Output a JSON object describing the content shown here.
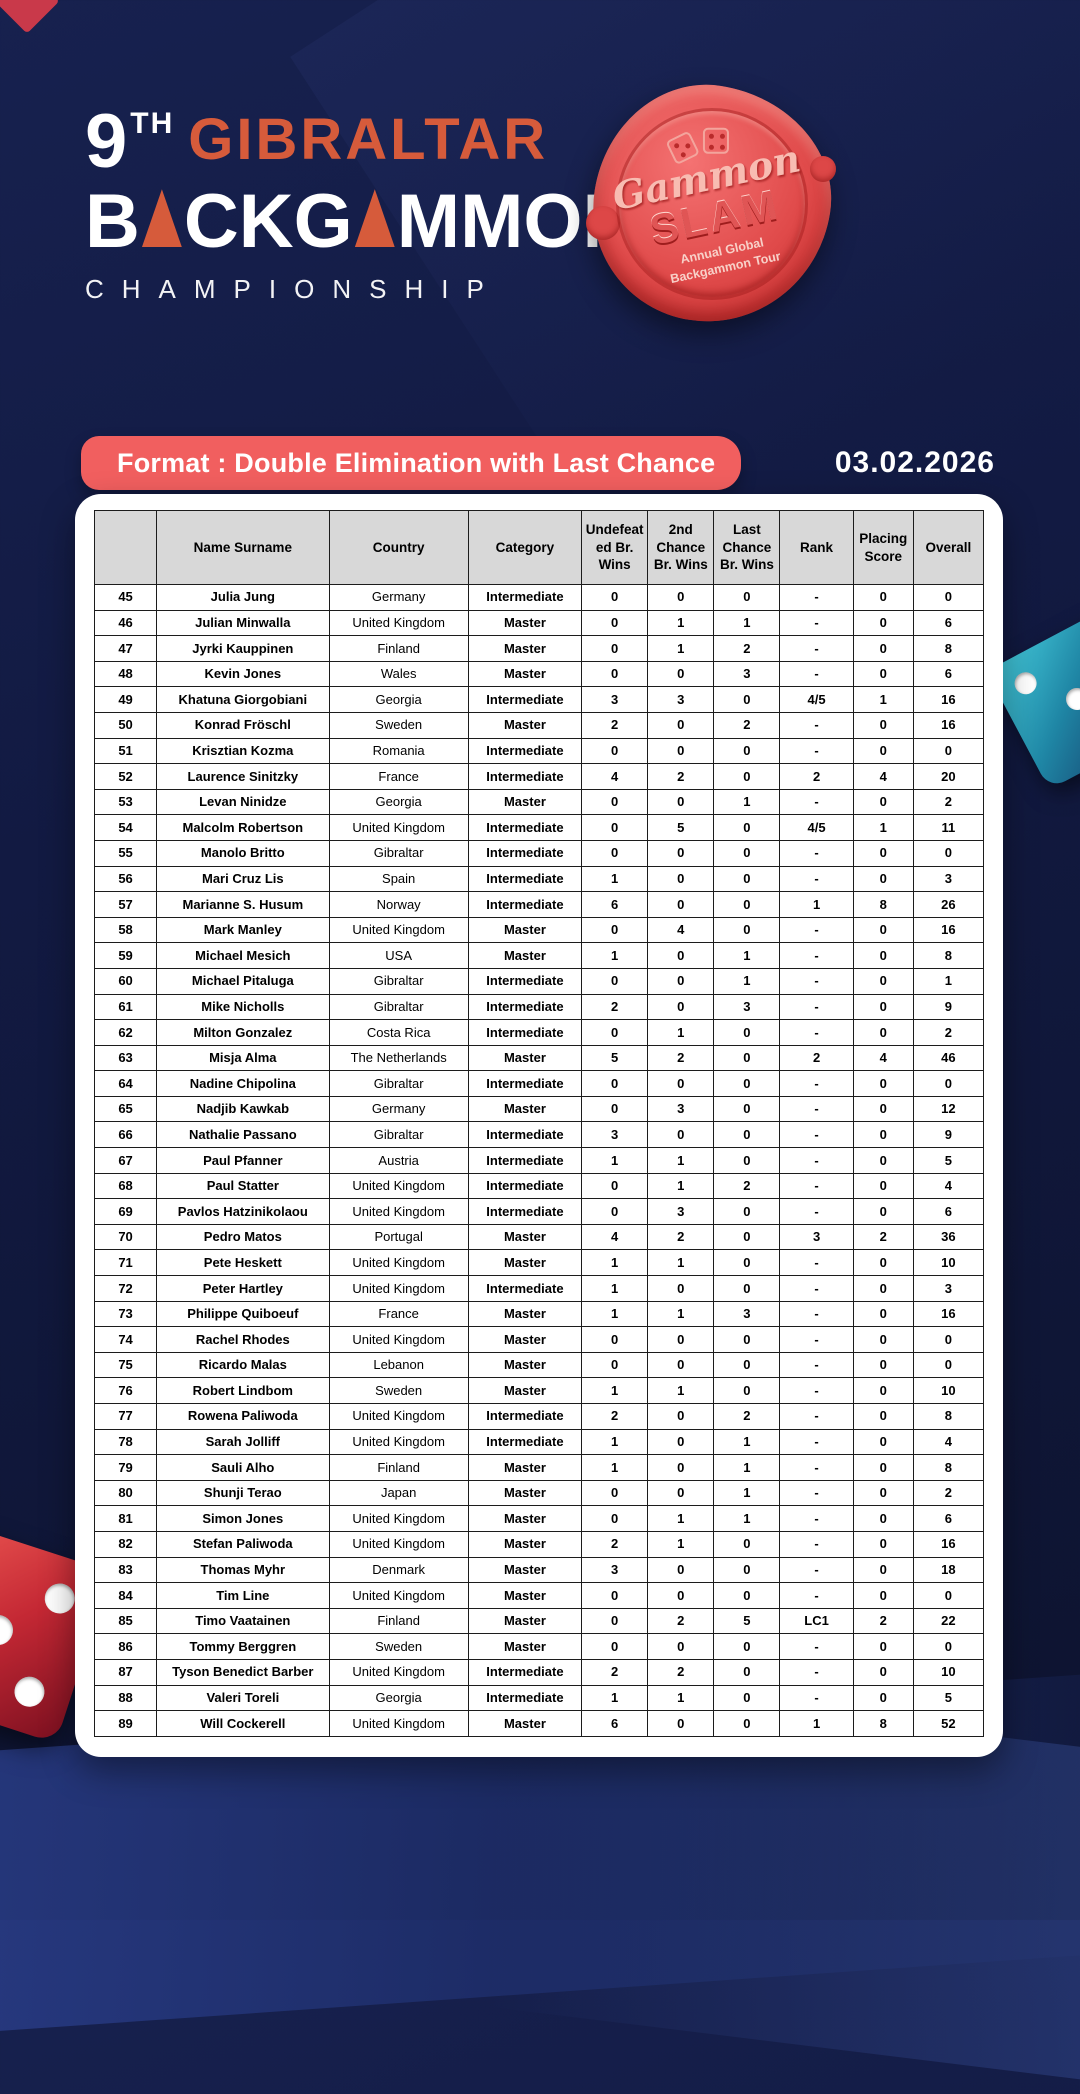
{
  "logo": {
    "ordinal": "9",
    "ordinal_suffix": "TH",
    "title_top": "GIBRALTAR",
    "main_segments": [
      "B",
      "CKG",
      "MMON"
    ],
    "subtitle": "CHAMPIONSHIP"
  },
  "seal": {
    "script_word": "Gammon",
    "main_word": "SLAM",
    "sub_line1": "Annual Global",
    "sub_line2": "Backgammon Tour"
  },
  "banner": {
    "label": "Format : Double Elimination with Last Chance"
  },
  "event_date": "03.02.2026",
  "table": {
    "headers": [
      "",
      "Name Surname",
      "Country",
      "Category",
      "Undefeated Br. Wins",
      "2nd Chance Br. Wins",
      "Last Chance Br. Wins",
      "Rank",
      "Placing Score",
      "Overall"
    ],
    "rows": [
      [
        "45",
        "Julia Jung",
        "Germany",
        "Intermediate",
        "0",
        "0",
        "0",
        "-",
        "0",
        "0"
      ],
      [
        "46",
        "Julian Minwalla",
        "United Kingdom",
        "Master",
        "0",
        "1",
        "1",
        "-",
        "0",
        "6"
      ],
      [
        "47",
        "Jyrki Kauppinen",
        "Finland",
        "Master",
        "0",
        "1",
        "2",
        "-",
        "0",
        "8"
      ],
      [
        "48",
        "Kevin Jones",
        "Wales",
        "Master",
        "0",
        "0",
        "3",
        "-",
        "0",
        "6"
      ],
      [
        "49",
        "Khatuna Giorgobiani",
        "Georgia",
        "Intermediate",
        "3",
        "3",
        "0",
        "4/5",
        "1",
        "16"
      ],
      [
        "50",
        "Konrad Fröschl",
        "Sweden",
        "Master",
        "2",
        "0",
        "2",
        "-",
        "0",
        "16"
      ],
      [
        "51",
        "Krisztian Kozma",
        "Romania",
        "Intermediate",
        "0",
        "0",
        "0",
        "-",
        "0",
        "0"
      ],
      [
        "52",
        "Laurence Sinitzky",
        "France",
        "Intermediate",
        "4",
        "2",
        "0",
        "2",
        "4",
        "20"
      ],
      [
        "53",
        "Levan Ninidze",
        "Georgia",
        "Master",
        "0",
        "0",
        "1",
        "-",
        "0",
        "2"
      ],
      [
        "54",
        "Malcolm Robertson",
        "United Kingdom",
        "Intermediate",
        "0",
        "5",
        "0",
        "4/5",
        "1",
        "11"
      ],
      [
        "55",
        "Manolo Britto",
        "Gibraltar",
        "Intermediate",
        "0",
        "0",
        "0",
        "-",
        "0",
        "0"
      ],
      [
        "56",
        "Mari Cruz Lis",
        "Spain",
        "Intermediate",
        "1",
        "0",
        "0",
        "-",
        "0",
        "3"
      ],
      [
        "57",
        "Marianne S. Husum",
        "Norway",
        "Intermediate",
        "6",
        "0",
        "0",
        "1",
        "8",
        "26"
      ],
      [
        "58",
        "Mark Manley",
        "United Kingdom",
        "Master",
        "0",
        "4",
        "0",
        "-",
        "0",
        "16"
      ],
      [
        "59",
        "Michael Mesich",
        "USA",
        "Master",
        "1",
        "0",
        "1",
        "-",
        "0",
        "8"
      ],
      [
        "60",
        "Michael Pitaluga",
        "Gibraltar",
        "Intermediate",
        "0",
        "0",
        "1",
        "-",
        "0",
        "1"
      ],
      [
        "61",
        "Mike Nicholls",
        "Gibraltar",
        "Intermediate",
        "2",
        "0",
        "3",
        "-",
        "0",
        "9"
      ],
      [
        "62",
        "Milton Gonzalez",
        "Costa Rica",
        "Intermediate",
        "0",
        "1",
        "0",
        "-",
        "0",
        "2"
      ],
      [
        "63",
        "Misja Alma",
        "The Netherlands",
        "Master",
        "5",
        "2",
        "0",
        "2",
        "4",
        "46"
      ],
      [
        "64",
        "Nadine Chipolina",
        "Gibraltar",
        "Intermediate",
        "0",
        "0",
        "0",
        "-",
        "0",
        "0"
      ],
      [
        "65",
        "Nadjib Kawkab",
        "Germany",
        "Master",
        "0",
        "3",
        "0",
        "-",
        "0",
        "12"
      ],
      [
        "66",
        "Nathalie Passano",
        "Gibraltar",
        "Intermediate",
        "3",
        "0",
        "0",
        "-",
        "0",
        "9"
      ],
      [
        "67",
        "Paul Pfanner",
        "Austria",
        "Intermediate",
        "1",
        "1",
        "0",
        "-",
        "0",
        "5"
      ],
      [
        "68",
        "Paul Statter",
        "United Kingdom",
        "Intermediate",
        "0",
        "1",
        "2",
        "-",
        "0",
        "4"
      ],
      [
        "69",
        "Pavlos Hatzinikolaou",
        "United Kingdom",
        "Intermediate",
        "0",
        "3",
        "0",
        "-",
        "0",
        "6"
      ],
      [
        "70",
        "Pedro Matos",
        "Portugal",
        "Master",
        "4",
        "2",
        "0",
        "3",
        "2",
        "36"
      ],
      [
        "71",
        "Pete Heskett",
        "United Kingdom",
        "Master",
        "1",
        "1",
        "0",
        "-",
        "0",
        "10"
      ],
      [
        "72",
        "Peter Hartley",
        "United Kingdom",
        "Intermediate",
        "1",
        "0",
        "0",
        "-",
        "0",
        "3"
      ],
      [
        "73",
        "Philippe Quiboeuf",
        "France",
        "Master",
        "1",
        "1",
        "3",
        "-",
        "0",
        "16"
      ],
      [
        "74",
        "Rachel Rhodes",
        "United Kingdom",
        "Master",
        "0",
        "0",
        "0",
        "-",
        "0",
        "0"
      ],
      [
        "75",
        "Ricardo Malas",
        "Lebanon",
        "Master",
        "0",
        "0",
        "0",
        "-",
        "0",
        "0"
      ],
      [
        "76",
        "Robert Lindbom",
        "Sweden",
        "Master",
        "1",
        "1",
        "0",
        "-",
        "0",
        "10"
      ],
      [
        "77",
        "Rowena Paliwoda",
        "United Kingdom",
        "Intermediate",
        "2",
        "0",
        "2",
        "-",
        "0",
        "8"
      ],
      [
        "78",
        "Sarah Jolliff",
        "United Kingdom",
        "Intermediate",
        "1",
        "0",
        "1",
        "-",
        "0",
        "4"
      ],
      [
        "79",
        "Sauli Alho",
        "Finland",
        "Master",
        "1",
        "0",
        "1",
        "-",
        "0",
        "8"
      ],
      [
        "80",
        "Shunji Terao",
        "Japan",
        "Master",
        "0",
        "0",
        "1",
        "-",
        "0",
        "2"
      ],
      [
        "81",
        "Simon Jones",
        "United Kingdom",
        "Master",
        "0",
        "1",
        "1",
        "-",
        "0",
        "6"
      ],
      [
        "82",
        "Stefan Paliwoda",
        "United Kingdom",
        "Master",
        "2",
        "1",
        "0",
        "-",
        "0",
        "16"
      ],
      [
        "83",
        "Thomas Myhr",
        "Denmark",
        "Master",
        "3",
        "0",
        "0",
        "-",
        "0",
        "18"
      ],
      [
        "84",
        "Tim Line",
        "United Kingdom",
        "Master",
        "0",
        "0",
        "0",
        "-",
        "0",
        "0"
      ],
      [
        "85",
        "Timo Vaatainen",
        "Finland",
        "Master",
        "0",
        "2",
        "5",
        "LC1",
        "2",
        "22"
      ],
      [
        "86",
        "Tommy Berggren",
        "Sweden",
        "Master",
        "0",
        "0",
        "0",
        "-",
        "0",
        "0"
      ],
      [
        "87",
        "Tyson Benedict Barber",
        "United Kingdom",
        "Intermediate",
        "2",
        "2",
        "0",
        "-",
        "0",
        "10"
      ],
      [
        "88",
        "Valeri Toreli",
        "Georgia",
        "Intermediate",
        "1",
        "1",
        "0",
        "-",
        "0",
        "5"
      ],
      [
        "89",
        "Will Cockerell",
        "United Kingdom",
        "Master",
        "6",
        "0",
        "0",
        "1",
        "8",
        "52"
      ]
    ]
  },
  "colors": {
    "background_navy": "#121a42",
    "accent_orange": "#d65b3b",
    "banner_red": "#f15f5f",
    "seal_red": "#e14b4b",
    "table_header_gray": "#d8d8d8",
    "die_red": "#c42834",
    "die_teal": "#2aa9c4"
  }
}
